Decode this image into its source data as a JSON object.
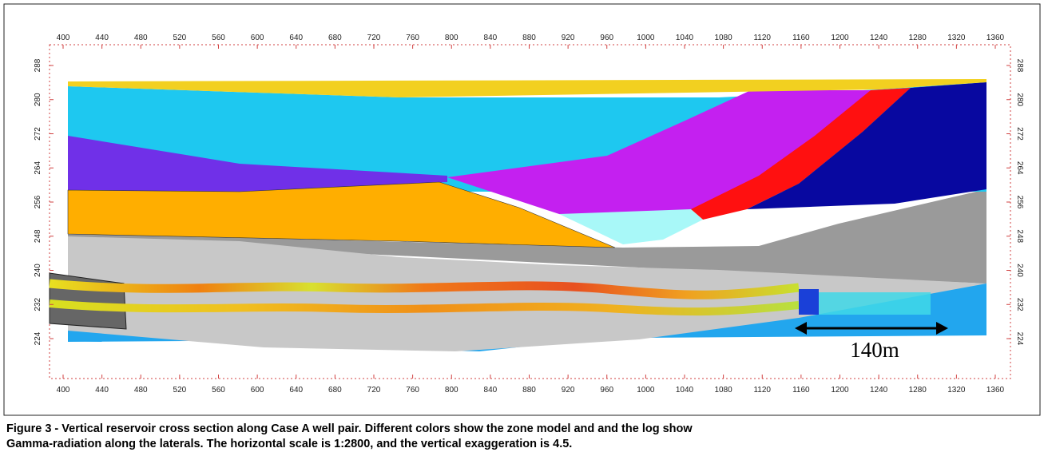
{
  "figure": {
    "xlim": [
      400,
      1360
    ],
    "xticks": [
      400,
      440,
      480,
      520,
      560,
      600,
      640,
      680,
      720,
      760,
      800,
      840,
      880,
      920,
      960,
      1000,
      1040,
      1080,
      1120,
      1160,
      1200,
      1240,
      1280,
      1320,
      1360
    ],
    "ylim": [
      224,
      288
    ],
    "yticks": [
      224,
      232,
      240,
      248,
      256,
      264,
      272,
      280,
      288
    ],
    "scale_annotation": "140m",
    "caption": [
      "Figure 3 - Vertical reservoir cross section along Case A well pair. Different colors show the zone model and and the log show",
      "Gamma-radiation along the laterals. The horizontal scale is 1:2800, and the vertical exaggeration is 4.5."
    ]
  }
}
